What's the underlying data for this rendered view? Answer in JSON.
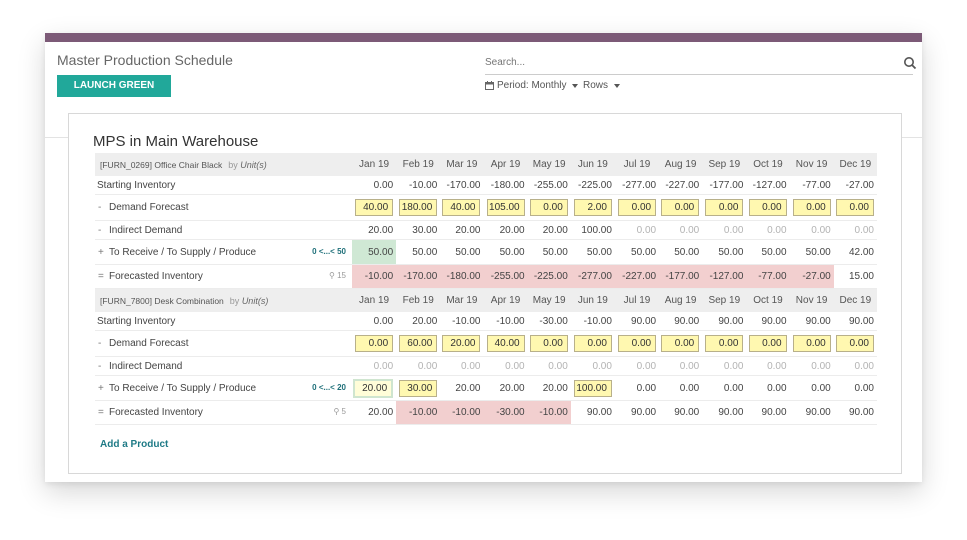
{
  "control_panel": {
    "title": "Master Production Schedule",
    "launch_button": "LAUNCH GREEN CELLS",
    "search_placeholder": "Search...",
    "period_label": "Period: Monthly",
    "rows_label": "Rows"
  },
  "sheet": {
    "title": "MPS in Main Warehouse",
    "add_product": "Add a Product",
    "months": [
      "Jan 19",
      "Feb 19",
      "Mar 19",
      "Apr 19",
      "May 19",
      "Jun 19",
      "Jul 19",
      "Aug 19",
      "Sep 19",
      "Oct 19",
      "Nov 19",
      "Dec 19"
    ],
    "row_labels": {
      "starting": "Starting Inventory",
      "demand": "Demand Forecast",
      "indirect": "Indirect Demand",
      "receive": "To Receive / To Supply / Produce",
      "forecasted": "Forecasted Inventory"
    },
    "prefixes": {
      "minus": "-",
      "plus": "+",
      "equals": "="
    },
    "products": [
      {
        "name": "[FURN_0269] Office Chair Black",
        "uom_by": "by",
        "uom": "Unit(s)",
        "safety": "0 <...< 50",
        "pin": "15",
        "starting": [
          "0.00",
          "-10.00",
          "-170.00",
          "-180.00",
          "-255.00",
          "-225.00",
          "-277.00",
          "-227.00",
          "-177.00",
          "-127.00",
          "-77.00",
          "-27.00"
        ],
        "demand": [
          "40.00",
          "180.00",
          "40.00",
          "105.00",
          "0.00",
          "2.00",
          "0.00",
          "0.00",
          "0.00",
          "0.00",
          "0.00",
          "0.00"
        ],
        "indirect": [
          "20.00",
          "30.00",
          "20.00",
          "20.00",
          "20.00",
          "100.00",
          "0.00",
          "0.00",
          "0.00",
          "0.00",
          "0.00",
          "0.00"
        ],
        "receive": [
          "50.00",
          "50.00",
          "50.00",
          "50.00",
          "50.00",
          "50.00",
          "50.00",
          "50.00",
          "50.00",
          "50.00",
          "50.00",
          "42.00"
        ],
        "forecasted": [
          "-10.00",
          "-170.00",
          "-180.00",
          "-255.00",
          "-225.00",
          "-277.00",
          "-227.00",
          "-177.00",
          "-127.00",
          "-77.00",
          "-27.00",
          "15.00"
        ]
      },
      {
        "name": "[FURN_7800] Desk Combination",
        "uom_by": "by",
        "uom": "Unit(s)",
        "safety": "0 <...< 20",
        "pin": "5",
        "starting": [
          "0.00",
          "20.00",
          "-10.00",
          "-10.00",
          "-30.00",
          "-10.00",
          "90.00",
          "90.00",
          "90.00",
          "90.00",
          "90.00",
          "90.00"
        ],
        "demand": [
          "0.00",
          "60.00",
          "20.00",
          "40.00",
          "0.00",
          "0.00",
          "0.00",
          "0.00",
          "0.00",
          "0.00",
          "0.00",
          "0.00"
        ],
        "indirect": [
          "0.00",
          "0.00",
          "0.00",
          "0.00",
          "0.00",
          "0.00",
          "0.00",
          "0.00",
          "0.00",
          "0.00",
          "0.00",
          "0.00"
        ],
        "receive": [
          "20.00",
          "30.00",
          "20.00",
          "20.00",
          "20.00",
          "100.00",
          "0.00",
          "0.00",
          "0.00",
          "0.00",
          "0.00",
          "0.00"
        ],
        "forecasted": [
          "20.00",
          "-10.00",
          "-10.00",
          "-30.00",
          "-10.00",
          "90.00",
          "90.00",
          "90.00",
          "90.00",
          "90.00",
          "90.00",
          "90.00"
        ]
      }
    ]
  },
  "colors": {
    "topbar": "#7c5a77",
    "launch_button": "#21a89a",
    "input_cell": "#fff8b0",
    "negative_cell": "#f2cfcf",
    "green_cell": "#cfe8d4"
  }
}
